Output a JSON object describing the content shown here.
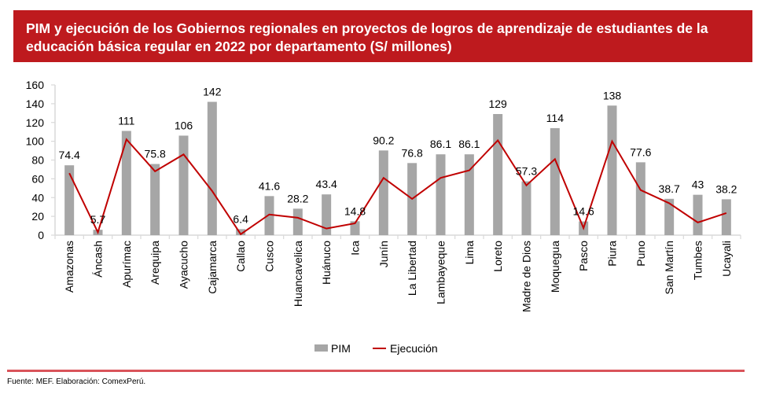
{
  "chart_data": {
    "type": "bar",
    "title": "PIM y ejecución de los Gobiernos regionales en proyectos de logros de aprendizaje de estudiantes de la educación básica regular en 2022 por departamento (S/ millones)",
    "categories": [
      "Amazonas",
      "Áncash",
      "Apurímac",
      "Arequipa",
      "Ayacucho",
      "Cajamarca",
      "Callao",
      "Cusco",
      "Huancavelica",
      "Huánuco",
      "Ica",
      "Junín",
      "La Libertad",
      "Lambayeque",
      "Lima",
      "Loreto",
      "Madre de Dios",
      "Moquegua",
      "Pasco",
      "Piura",
      "Puno",
      "San Martín",
      "Tumbes",
      "Ucayali"
    ],
    "series": [
      {
        "name": "PIM",
        "type": "bar",
        "color": "#A6A6A6",
        "values": [
          74.4,
          5.7,
          111,
          75.8,
          106,
          142,
          6.4,
          41.6,
          28.2,
          43.4,
          14.8,
          90.2,
          76.8,
          86.1,
          86.1,
          129,
          57.3,
          114,
          14.6,
          138,
          77.6,
          38.7,
          43,
          38.2
        ],
        "labels": [
          "74.4",
          "5.7",
          "111",
          "75.8",
          "106",
          "142",
          "6.4",
          "41.6",
          "28.2",
          "43.4",
          "14.8",
          "90.2",
          "76.8",
          "86.1",
          "86.1",
          "129",
          "57.3",
          "114",
          "14.6",
          "138",
          "77.6",
          "38.7",
          "43",
          "38.2"
        ]
      },
      {
        "name": "Ejecución",
        "type": "line",
        "color": "#C00000",
        "values": [
          66,
          3,
          102,
          68,
          86,
          47,
          1,
          22,
          18.5,
          7,
          12.6,
          61,
          38.6,
          61,
          69,
          101,
          53,
          81,
          7.5,
          100,
          48,
          34,
          13.5,
          23.5
        ]
      }
    ],
    "ylim": [
      0,
      160
    ],
    "yticks": [
      "0",
      "20",
      "40",
      "60",
      "80",
      "100",
      "120",
      "140",
      "160"
    ],
    "legend": "bottom",
    "grid": false
  },
  "source": "Fuente: MEF. Elaboración: ComexPerú.",
  "colors": {
    "banner": "#BE1A1E",
    "footer_line": "#D9545A"
  }
}
